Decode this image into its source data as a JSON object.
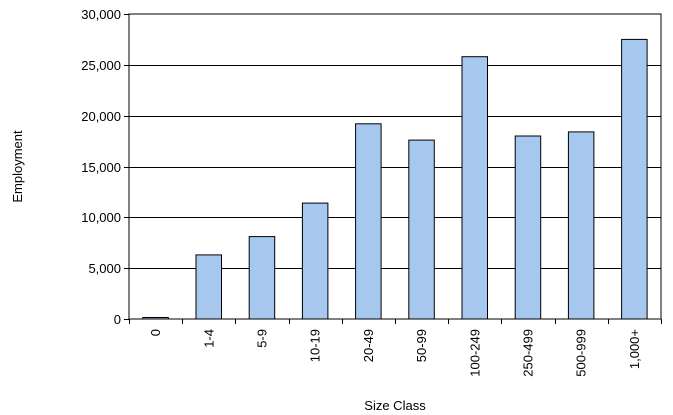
{
  "chart_data": {
    "type": "bar",
    "categories": [
      "0",
      "1-4",
      "5-9",
      "10-19",
      "20-49",
      "50-99",
      "100-249",
      "250-499",
      "500-999",
      "1,000+"
    ],
    "values": [
      150,
      6300,
      8100,
      11400,
      19200,
      17600,
      25800,
      18000,
      18400,
      27500
    ],
    "xlabel": "Size Class",
    "ylabel": "Employment",
    "ylim": [
      0,
      30000
    ],
    "yticks": [
      0,
      5000,
      10000,
      15000,
      20000,
      25000,
      30000
    ],
    "ytick_labels": [
      "0",
      "5,000",
      "10,000",
      "15,000",
      "20,000",
      "25,000",
      "30,000"
    ],
    "grid": true,
    "bar_color": "#a6c8ee",
    "bar_edge_color": "#000000"
  }
}
